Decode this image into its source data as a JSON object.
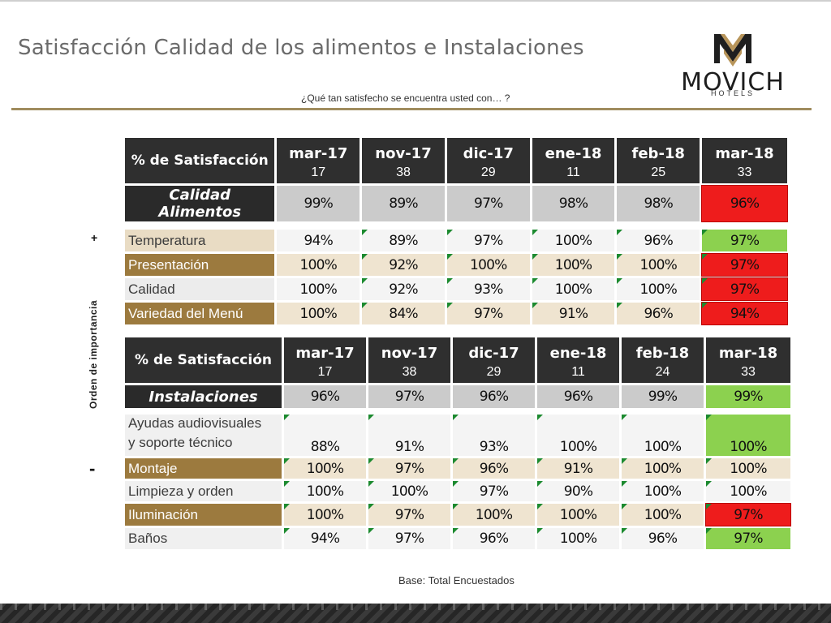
{
  "slide": {
    "title": "Satisfacción Calidad de los alimentos e Instalaciones",
    "question": "¿Qué tan satisfecho se encuentra usted con… ?",
    "axis_label": "Orden de importancia",
    "plus": "+",
    "minus": "-",
    "footer": "Base: Total Encuestados"
  },
  "logo": {
    "word": "MOVICH",
    "sub": "HOTELS",
    "icon": "movich-m-icon"
  },
  "colors": {
    "red": "#ee1c1c",
    "green": "#8cd14f",
    "gold": "#9c7a3e",
    "header": "#2f2f2f"
  },
  "table1": {
    "header_title": "% de Satisfacción",
    "months": [
      "mar-17",
      "nov-17",
      "dic-17",
      "ene-18",
      "feb-18",
      "mar-18"
    ],
    "n": [
      "17",
      "38",
      "29",
      "11",
      "25",
      "33"
    ],
    "category": {
      "label": "Calidad Alimentos",
      "values": [
        "99%",
        "89%",
        "97%",
        "98%",
        "98%",
        "96%"
      ],
      "status": "red"
    },
    "rows": [
      {
        "label": "Temperatura",
        "values": [
          "94%",
          "89%",
          "97%",
          "100%",
          "96%",
          "97%"
        ],
        "status": "green"
      },
      {
        "label": "Presentación",
        "values": [
          "100%",
          "92%",
          "100%",
          "100%",
          "100%",
          "97%"
        ],
        "status": "red"
      },
      {
        "label": "Calidad",
        "values": [
          "100%",
          "92%",
          "93%",
          "100%",
          "100%",
          "97%"
        ],
        "status": "red"
      },
      {
        "label": "Variedad del Menú",
        "values": [
          "100%",
          "84%",
          "97%",
          "91%",
          "96%",
          "94%"
        ],
        "status": "red"
      }
    ]
  },
  "table2": {
    "header_title": "% de Satisfacción",
    "months": [
      "mar-17",
      "nov-17",
      "dic-17",
      "ene-18",
      "feb-18",
      "mar-18"
    ],
    "n": [
      "17",
      "38",
      "29",
      "11",
      "24",
      "33"
    ],
    "category": {
      "label": "Instalaciones",
      "values": [
        "96%",
        "97%",
        "96%",
        "96%",
        "99%",
        "99%"
      ],
      "status": "green"
    },
    "rows": [
      {
        "label_line1": "Ayudas audiovisuales",
        "label_line2": "y soporte técnico",
        "values": [
          "88%",
          "91%",
          "93%",
          "100%",
          "100%",
          "100%"
        ],
        "status": "green"
      },
      {
        "label": "Montaje",
        "values": [
          "100%",
          "97%",
          "96%",
          "91%",
          "100%",
          "100%"
        ],
        "status": "none"
      },
      {
        "label": "Limpieza y orden",
        "values": [
          "100%",
          "100%",
          "97%",
          "90%",
          "100%",
          "100%"
        ],
        "status": "none"
      },
      {
        "label": "Iluminación",
        "values": [
          "100%",
          "97%",
          "100%",
          "100%",
          "100%",
          "97%"
        ],
        "status": "red"
      },
      {
        "label": "Baños",
        "values": [
          "94%",
          "97%",
          "96%",
          "100%",
          "96%",
          "97%"
        ],
        "status": "green"
      }
    ]
  }
}
